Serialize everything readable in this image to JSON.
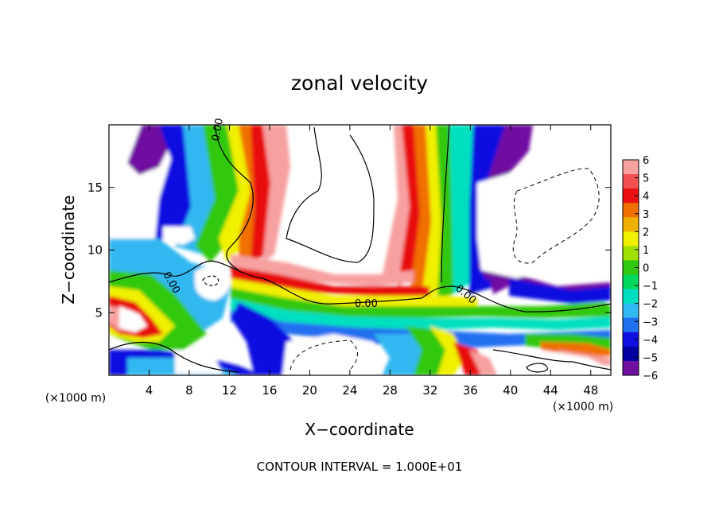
{
  "chart_data": {
    "type": "heatmap",
    "title": "zonal velocity",
    "xlabel": "X−coordinate",
    "ylabel": "Z−coordinate",
    "x_unit_label": "(×1000 m)",
    "y_unit_label": "(×1000 m)",
    "xlim": [
      0,
      50
    ],
    "ylim": [
      0,
      20
    ],
    "x_ticks": [
      4,
      8,
      12,
      16,
      20,
      24,
      28,
      32,
      36,
      40,
      44,
      48
    ],
    "x_tick_labels": [
      "4",
      "8",
      "12",
      "16",
      "20",
      "24",
      "28",
      "32",
      "36",
      "40",
      "44",
      "48"
    ],
    "y_ticks": [
      5,
      10,
      15
    ],
    "y_tick_labels": [
      "5",
      "10",
      "15"
    ],
    "contour_labels": [
      "0.00",
      "0.00",
      "0.00",
      "0.00"
    ],
    "contour_note": "CONTOUR INTERVAL = 1.000E+01",
    "colorbar": {
      "ticks": [
        6,
        5,
        4,
        3,
        2,
        1,
        0,
        -1,
        -2,
        -3,
        -4,
        -5,
        -6
      ],
      "tick_labels": [
        "6",
        "5",
        "4",
        "3",
        "2",
        "1",
        "0",
        "−1",
        "−2",
        "−3",
        "−4",
        "−5",
        "−6"
      ],
      "colors": [
        "#f7a0a0",
        "#f05050",
        "#e81010",
        "#f07000",
        "#f0b000",
        "#f0f000",
        "#a0e000",
        "#30c810",
        "#00d860",
        "#00e0c0",
        "#30b8f0",
        "#2070f0",
        "#1010e0",
        "#0000a0",
        "#7010a0"
      ]
    },
    "grid": false,
    "legend": "right"
  }
}
